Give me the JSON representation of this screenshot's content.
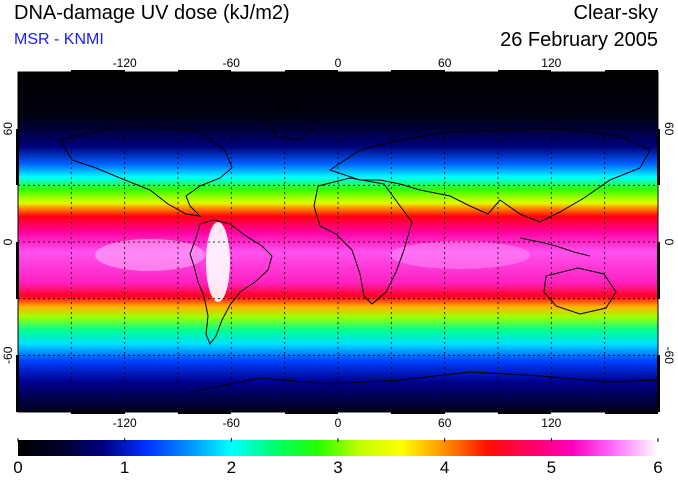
{
  "header": {
    "title": "DNA-damage UV dose (kJ/m2)",
    "source": "MSR - KNMI",
    "mode": "Clear-sky",
    "date": "26 February 2005"
  },
  "map": {
    "longitude_ticks": [
      -120,
      -60,
      0,
      60,
      120
    ],
    "latitude_ticks": [
      60,
      0,
      -60
    ],
    "gridlines": "dashed",
    "projection": "equirectangular",
    "lon_range": [
      -180,
      180
    ],
    "lat_range": [
      -90,
      90
    ]
  },
  "colorbar": {
    "ticks": [
      "0",
      "1",
      "2",
      "3",
      "4",
      "5",
      "6"
    ],
    "range": [
      0,
      6
    ],
    "colors": [
      "#000000",
      "#00002a",
      "#000080",
      "#0030ff",
      "#0090ff",
      "#00ffff",
      "#00ff70",
      "#20ff00",
      "#c0ff00",
      "#ffff00",
      "#ff9000",
      "#ff1000",
      "#ff0060",
      "#ff00c0",
      "#ff70ff",
      "#ffffff"
    ]
  }
}
